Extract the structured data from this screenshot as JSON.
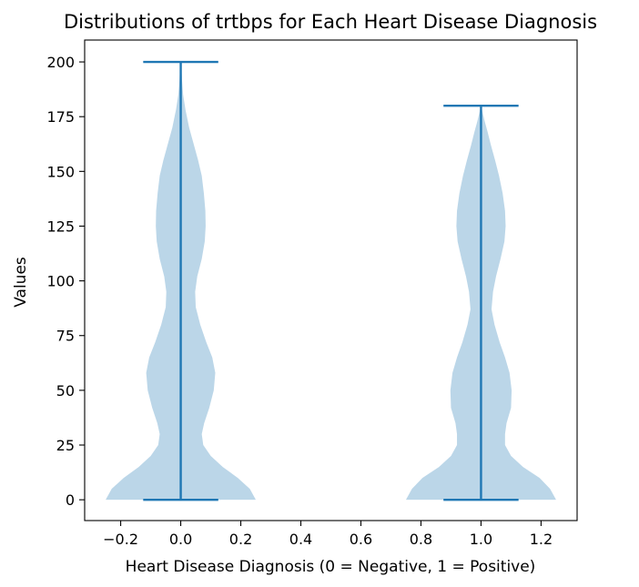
{
  "chart_data": {
    "type": "violin",
    "title": "Distributions of trtbps for Each Heart Disease Diagnosis",
    "xlabel": "Heart Disease Diagnosis (0 = Negative, 1 = Positive)",
    "ylabel": "Values",
    "xlim": [
      -0.32,
      1.32
    ],
    "ylim": [
      -9.5,
      210
    ],
    "xticks": [
      -0.2,
      0.0,
      0.2,
      0.4,
      0.6,
      0.8,
      1.0,
      1.2
    ],
    "xtick_labels": [
      "−0.2",
      "0.0",
      "0.2",
      "0.4",
      "0.6",
      "0.8",
      "1.0",
      "1.2"
    ],
    "yticks": [
      0,
      25,
      50,
      75,
      100,
      125,
      150,
      175,
      200
    ],
    "ytick_labels": [
      "0",
      "25",
      "50",
      "75",
      "100",
      "125",
      "150",
      "175",
      "200"
    ],
    "grid": false,
    "colors": {
      "violin_fill": "#1f77b4",
      "violin_alpha": 0.3,
      "whisker": "#1f77b4"
    },
    "violins": [
      {
        "position": 0,
        "min": 0,
        "max": 200,
        "profile": [
          [
            0,
            0.25
          ],
          [
            5,
            0.23
          ],
          [
            10,
            0.19
          ],
          [
            15,
            0.14
          ],
          [
            20,
            0.1
          ],
          [
            25,
            0.075
          ],
          [
            30,
            0.07
          ],
          [
            35,
            0.078
          ],
          [
            42,
            0.095
          ],
          [
            50,
            0.11
          ],
          [
            58,
            0.115
          ],
          [
            65,
            0.105
          ],
          [
            72,
            0.085
          ],
          [
            80,
            0.065
          ],
          [
            88,
            0.05
          ],
          [
            95,
            0.048
          ],
          [
            102,
            0.055
          ],
          [
            110,
            0.07
          ],
          [
            118,
            0.08
          ],
          [
            125,
            0.083
          ],
          [
            132,
            0.082
          ],
          [
            140,
            0.077
          ],
          [
            148,
            0.07
          ],
          [
            155,
            0.058
          ],
          [
            163,
            0.042
          ],
          [
            170,
            0.028
          ],
          [
            178,
            0.016
          ],
          [
            185,
            0.008
          ],
          [
            192,
            0.004
          ],
          [
            200,
            0.001
          ]
        ]
      },
      {
        "position": 1,
        "min": 0,
        "max": 180,
        "profile": [
          [
            0,
            0.25
          ],
          [
            5,
            0.23
          ],
          [
            10,
            0.195
          ],
          [
            15,
            0.14
          ],
          [
            20,
            0.1
          ],
          [
            25,
            0.08
          ],
          [
            30,
            0.08
          ],
          [
            35,
            0.085
          ],
          [
            42,
            0.1
          ],
          [
            50,
            0.102
          ],
          [
            58,
            0.095
          ],
          [
            65,
            0.08
          ],
          [
            72,
            0.062
          ],
          [
            80,
            0.045
          ],
          [
            87,
            0.035
          ],
          [
            95,
            0.04
          ],
          [
            102,
            0.05
          ],
          [
            110,
            0.065
          ],
          [
            118,
            0.078
          ],
          [
            125,
            0.082
          ],
          [
            132,
            0.08
          ],
          [
            140,
            0.072
          ],
          [
            148,
            0.06
          ],
          [
            155,
            0.047
          ],
          [
            162,
            0.033
          ],
          [
            168,
            0.022
          ],
          [
            173,
            0.012
          ],
          [
            177,
            0.005
          ],
          [
            180,
            0.001
          ]
        ]
      }
    ]
  }
}
